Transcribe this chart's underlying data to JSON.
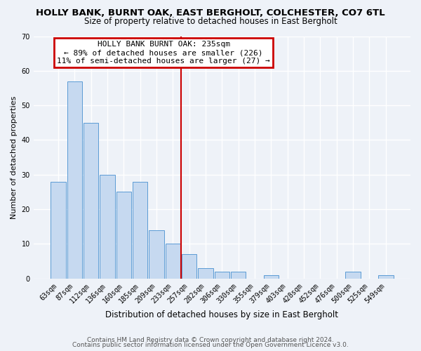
{
  "title": "HOLLY BANK, BURNT OAK, EAST BERGHOLT, COLCHESTER, CO7 6TL",
  "subtitle": "Size of property relative to detached houses in East Bergholt",
  "xlabel": "Distribution of detached houses by size in East Bergholt",
  "ylabel": "Number of detached properties",
  "footer_line1": "Contains HM Land Registry data © Crown copyright and database right 2024.",
  "footer_line2": "Contains public sector information licensed under the Open Government Licence v3.0.",
  "bar_labels": [
    "63sqm",
    "87sqm",
    "112sqm",
    "136sqm",
    "160sqm",
    "185sqm",
    "209sqm",
    "233sqm",
    "257sqm",
    "282sqm",
    "306sqm",
    "330sqm",
    "355sqm",
    "379sqm",
    "403sqm",
    "428sqm",
    "452sqm",
    "476sqm",
    "500sqm",
    "525sqm",
    "549sqm"
  ],
  "bar_values": [
    28,
    57,
    45,
    30,
    25,
    28,
    14,
    10,
    7,
    3,
    2,
    2,
    0,
    1,
    0,
    0,
    0,
    0,
    2,
    0,
    1
  ],
  "bar_color": "#c6d9f0",
  "bar_edgecolor": "#5b9bd5",
  "ylim": [
    0,
    70
  ],
  "yticks": [
    0,
    10,
    20,
    30,
    40,
    50,
    60,
    70
  ],
  "property_line_label": "HOLLY BANK BURNT OAK: 235sqm",
  "annotation_line1": "← 89% of detached houses are smaller (226)",
  "annotation_line2": "11% of semi-detached houses are larger (27) →",
  "annotation_box_color": "#ffffff",
  "annotation_box_edgecolor": "#cc0000",
  "vline_color": "#cc0000",
  "background_color": "#eef2f8",
  "grid_color": "#ffffff",
  "title_fontsize": 9.5,
  "subtitle_fontsize": 8.5,
  "xlabel_fontsize": 8.5,
  "ylabel_fontsize": 8,
  "tick_fontsize": 7,
  "footer_fontsize": 6.5,
  "annotation_fontsize": 8
}
